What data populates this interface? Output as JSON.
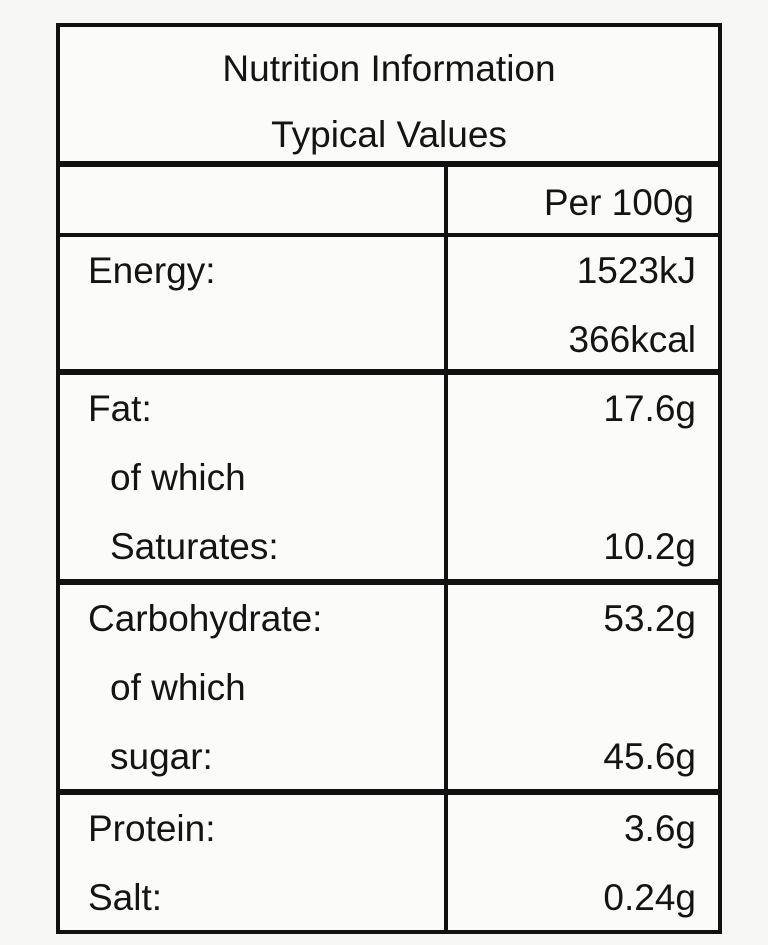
{
  "header": {
    "title": "Nutrition Information",
    "subtitle": "Typical Values"
  },
  "table": {
    "column_header": "Per 100g",
    "rows": [
      {
        "lines": [
          {
            "label": "Energy:",
            "value": "1523kJ"
          },
          {
            "value": "366kcal"
          }
        ]
      },
      {
        "lines": [
          {
            "label": "Fat:",
            "value": "17.6g"
          },
          {
            "label": "of which"
          },
          {
            "label": "Saturates:",
            "value": "10.2g"
          }
        ]
      },
      {
        "lines": [
          {
            "label": "Carbohydrate:",
            "value": "53.2g"
          },
          {
            "label": "of which"
          },
          {
            "label": "sugar:",
            "value": "45.6g"
          }
        ]
      },
      {
        "lines": [
          {
            "label": "Protein:",
            "value": "3.6g"
          },
          {
            "label": "Salt:",
            "value": "0.24g"
          }
        ]
      }
    ]
  }
}
